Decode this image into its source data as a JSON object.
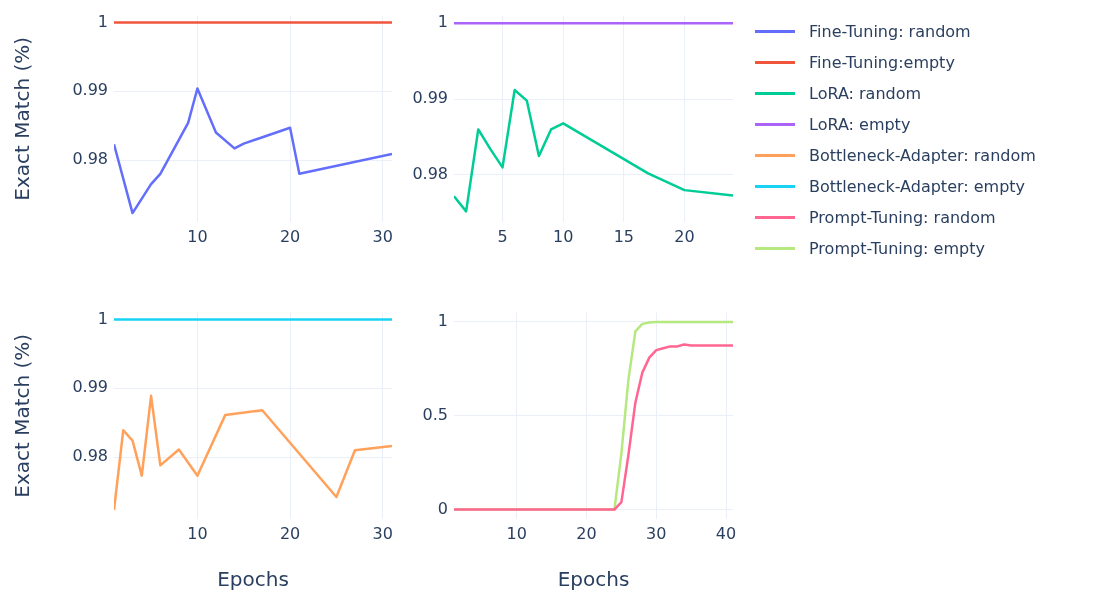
{
  "chart_data": [
    {
      "type": "line",
      "ylabel": "Exact Match (%)",
      "xlim": [
        1,
        31
      ],
      "xticks": [
        10,
        20,
        30
      ],
      "ylim": [
        0.971,
        1.001
      ],
      "yticks": [
        0.98,
        0.99,
        1
      ],
      "grid": true,
      "legend": "right",
      "series": [
        {
          "name": "Fine-Tuning: random",
          "color": "#636efa",
          "x": [
            1,
            3,
            5,
            6,
            9,
            10,
            12,
            14,
            15,
            20,
            21,
            31
          ],
          "values": [
            0.9823,
            0.9723,
            0.9765,
            0.978,
            0.9854,
            0.9904,
            0.984,
            0.9817,
            0.9824,
            0.9847,
            0.978,
            0.9809
          ]
        },
        {
          "name": "Fine-Tuning:empty",
          "color": "#ef553b",
          "x": [
            1,
            31
          ],
          "values": [
            1,
            1
          ]
        }
      ]
    },
    {
      "type": "line",
      "xlim": [
        1,
        24
      ],
      "xticks": [
        5,
        10,
        15,
        20
      ],
      "ylim": [
        0.9738,
        1.001
      ],
      "yticks": [
        0.98,
        0.99,
        1
      ],
      "grid": true,
      "legend": "right",
      "series": [
        {
          "name": "LoRA: random",
          "color": "#00cc96",
          "x": [
            1,
            2,
            3,
            4,
            5,
            6,
            7,
            8,
            9,
            10,
            17,
            20,
            24
          ],
          "values": [
            0.9772,
            0.9752,
            0.986,
            0.9834,
            0.981,
            0.9912,
            0.9898,
            0.9825,
            0.986,
            0.9868,
            0.9802,
            0.978,
            0.9773
          ]
        },
        {
          "name": "LoRA: empty",
          "color": "#ab63fa",
          "x": [
            1,
            24
          ],
          "values": [
            1,
            1
          ]
        }
      ]
    },
    {
      "type": "line",
      "ylabel": "Exact Match (%)",
      "xlabel": "Epochs",
      "xlim": [
        1,
        31
      ],
      "xticks": [
        10,
        20,
        30
      ],
      "ylim": [
        0.971,
        1.001
      ],
      "yticks": [
        0.98,
        0.99,
        1
      ],
      "grid": true,
      "legend": "right",
      "series": [
        {
          "name": "Bottleneck-Adapter: random",
          "color": "#ffa15a",
          "x": [
            1,
            2,
            3,
            4,
            5,
            6,
            8,
            10,
            13,
            17,
            25,
            27,
            31
          ],
          "values": [
            0.9723,
            0.9839,
            0.9824,
            0.9773,
            0.9889,
            0.9788,
            0.9811,
            0.9773,
            0.9861,
            0.9868,
            0.9742,
            0.981,
            0.9816
          ]
        },
        {
          "name": "Bottleneck-Adapter: empty",
          "color": "#19d3f3",
          "x": [
            1,
            31
          ],
          "values": [
            1,
            1
          ]
        }
      ]
    },
    {
      "type": "line",
      "xlabel": "Epochs",
      "xlim": [
        1,
        41
      ],
      "xticks": [
        10,
        20,
        30,
        40
      ],
      "ylim": [
        -0.05,
        1.05
      ],
      "yticks": [
        0,
        0.5,
        1
      ],
      "grid": true,
      "legend": "right",
      "series": [
        {
          "name": "Prompt-Tuning: random",
          "color": "#ff6692",
          "x": [
            1,
            24,
            25,
            26,
            27,
            28,
            29,
            30,
            31,
            32,
            33,
            34,
            35,
            36,
            41
          ],
          "values": [
            0,
            0,
            0.04,
            0.29,
            0.57,
            0.73,
            0.81,
            0.85,
            0.86,
            0.87,
            0.87,
            0.88,
            0.875,
            0.875,
            0.875
          ]
        },
        {
          "name": "Prompt-Tuning: empty",
          "color": "#b6e880",
          "x": [
            1,
            24,
            25,
            26,
            27,
            28,
            29,
            30,
            41
          ],
          "values": [
            0,
            0,
            0.3,
            0.69,
            0.95,
            0.99,
            0.997,
            1,
            1
          ]
        }
      ]
    }
  ]
}
